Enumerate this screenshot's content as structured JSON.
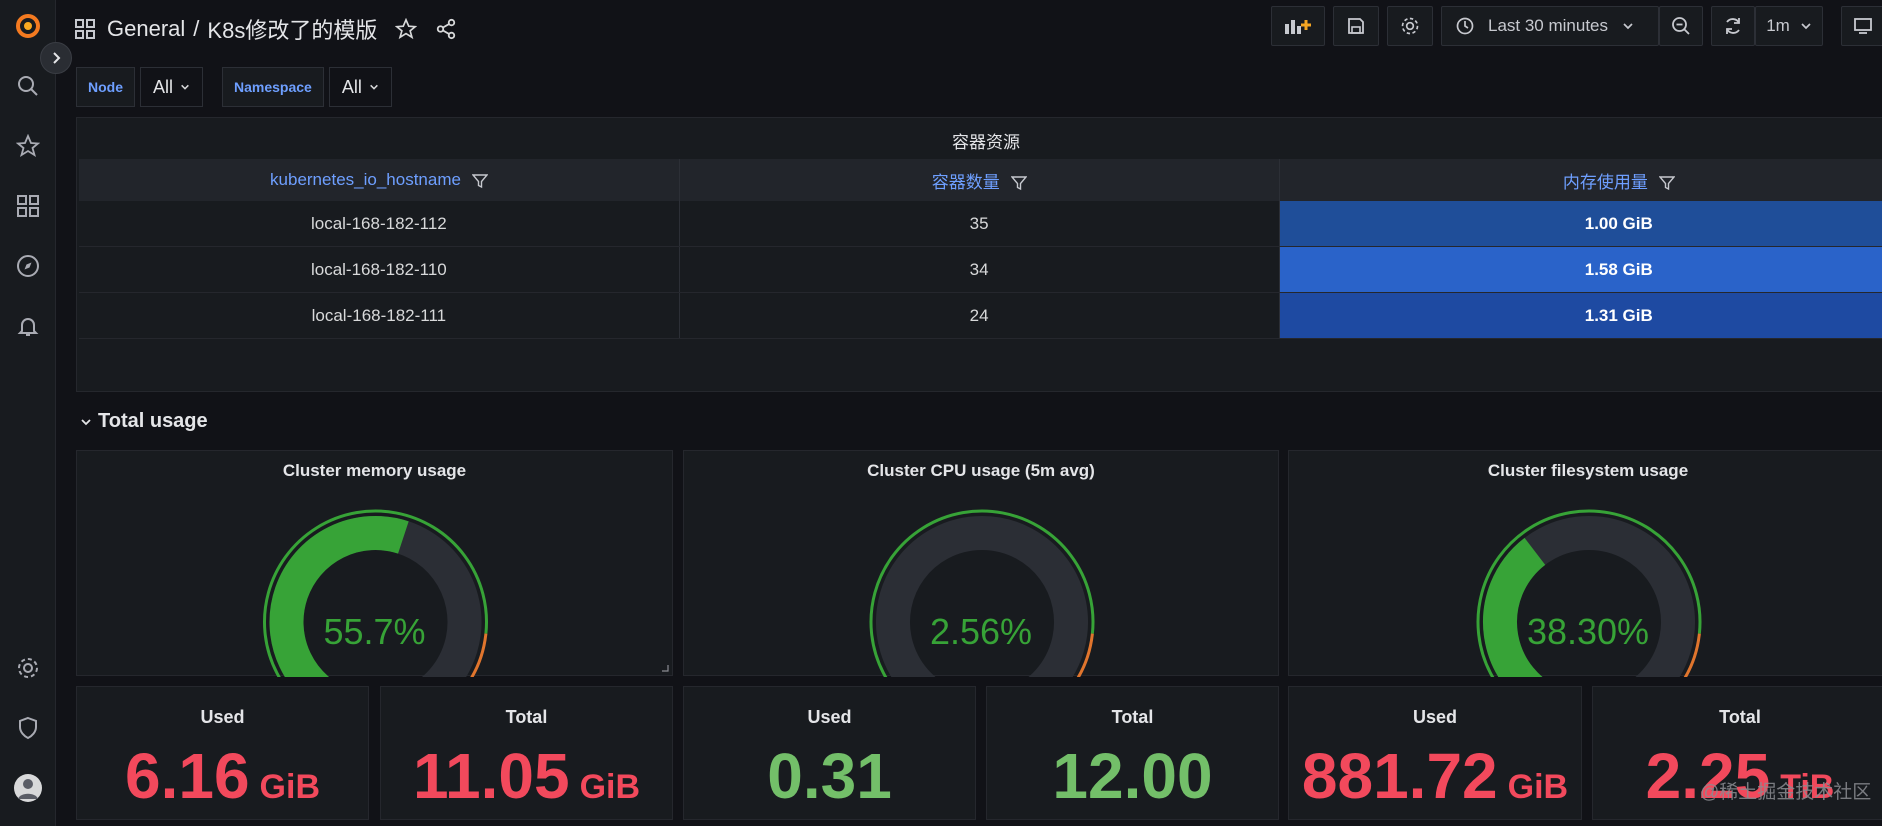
{
  "breadcrumb": {
    "folder": "General",
    "separator": "/",
    "title": "K8s修改了的模版"
  },
  "toolbar": {
    "time_range": "Last 30 minutes",
    "refresh": "1m"
  },
  "variables": [
    {
      "label": "Node",
      "value": "All"
    },
    {
      "label": "Namespace",
      "value": "All"
    }
  ],
  "table_panel": {
    "title": "容器资源",
    "columns": [
      "kubernetes_io_hostname",
      "容器数量",
      "内存使用量"
    ],
    "rows": [
      [
        "local-168-182-112",
        "35",
        "1.00 GiB"
      ],
      [
        "local-168-182-110",
        "34",
        "1.58 GiB"
      ],
      [
        "local-168-182-111",
        "24",
        "1.31 GiB"
      ]
    ],
    "mem_colors": [
      "#1f4e99",
      "#2a63c9",
      "#1e4aa2"
    ]
  },
  "row": {
    "title": "Total usage"
  },
  "gauges": [
    {
      "title": "Cluster memory usage",
      "value": "55.7%",
      "percent": 55.7
    },
    {
      "title": "Cluster CPU usage (5m avg)",
      "value": "2.56%",
      "percent": 2.56
    },
    {
      "title": "Cluster filesystem usage",
      "value": "38.30%",
      "percent": 38.3
    }
  ],
  "stats": [
    {
      "title": "Used",
      "value": "6.16",
      "unit": "GiB",
      "color": "#f2495c"
    },
    {
      "title": "Total",
      "value": "11.05",
      "unit": "GiB",
      "color": "#f2495c"
    },
    {
      "title": "Used",
      "value": "0.31",
      "unit": "",
      "color": "#73bf69"
    },
    {
      "title": "Total",
      "value": "12.00",
      "unit": "",
      "color": "#73bf69"
    },
    {
      "title": "Used",
      "value": "881.72",
      "unit": "GiB",
      "color": "#f2495c"
    },
    {
      "title": "Total",
      "value": "2.25",
      "unit": "TiB",
      "color": "#f2495c"
    }
  ],
  "watermark": "@稀土掘金技术社区",
  "colors": {
    "accent": "#6e9fff",
    "gauge_green": "#37a337",
    "gauge_orange": "#e0752d",
    "gauge_red": "#e02f44"
  }
}
